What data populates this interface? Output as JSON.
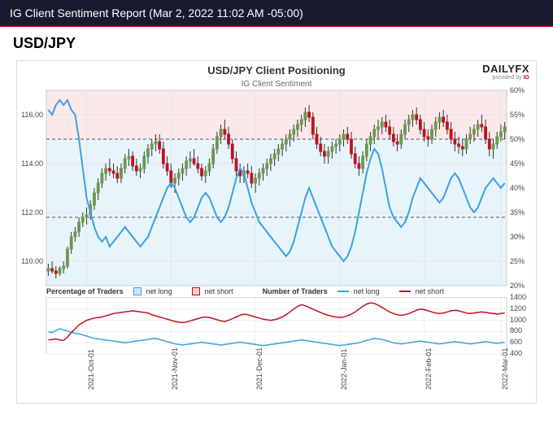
{
  "header": {
    "title": "IG Client Sentiment Report (Mar 2, 2022 11:02 AM -05:00)"
  },
  "pair": "USD/JPY",
  "logo": {
    "main": "DAILYFX",
    "sub_pre": "provided by ",
    "sub_ig": "IG"
  },
  "chart": {
    "title": "USD/JPY Client Positioning",
    "subtitle": "IG Client Sentiment",
    "background_long": "#e8f4fb",
    "background_short": "#fbe8e8",
    "border_color": "#cccccc",
    "left_axis": {
      "min": 109,
      "max": 117,
      "ticks": [
        110,
        112,
        114,
        116
      ],
      "label": "",
      "color": "#444",
      "fontsize": 9
    },
    "right_axis": {
      "min": 20,
      "max": 60,
      "ticks": [
        20,
        25,
        30,
        35,
        40,
        45,
        50,
        55,
        60
      ],
      "label": "",
      "color": "#444",
      "fontsize": 9
    },
    "hline_price": 115.0,
    "hline_sent": 50,
    "hline_sent_low": 34,
    "hline_color": "#555555",
    "hline_dash": "4 3",
    "x": {
      "n": 120,
      "ticks": [
        {
          "i": 10,
          "label": "2021-Oct-01"
        },
        {
          "i": 32,
          "label": "2021-Nov-01"
        },
        {
          "i": 54,
          "label": "2021-Dec-01"
        },
        {
          "i": 76,
          "label": "2022-Jan-01"
        },
        {
          "i": 98,
          "label": "2022-Feb-01"
        },
        {
          "i": 118,
          "label": "2022-Mar-01"
        }
      ]
    },
    "sentiment_line": {
      "color": "#3aa0e8",
      "width": 2,
      "y": [
        56,
        55,
        57,
        58,
        57,
        58,
        56,
        55,
        50,
        44,
        38,
        35,
        32,
        30,
        29,
        30,
        28,
        29,
        30,
        31,
        32,
        31,
        30,
        29,
        28,
        29,
        30,
        32,
        34,
        36,
        38,
        40,
        41,
        40,
        38,
        36,
        34,
        33,
        34,
        36,
        38,
        39,
        38,
        36,
        34,
        33,
        34,
        36,
        39,
        42,
        44,
        43,
        40,
        37,
        35,
        33,
        32,
        31,
        30,
        29,
        28,
        27,
        26,
        27,
        29,
        32,
        35,
        38,
        40,
        38,
        36,
        34,
        32,
        30,
        28,
        27,
        26,
        25,
        26,
        28,
        31,
        35,
        39,
        43,
        46,
        48,
        47,
        44,
        40,
        36,
        34,
        33,
        32,
        33,
        35,
        38,
        40,
        42,
        41,
        40,
        39,
        38,
        37,
        38,
        40,
        42,
        43,
        42,
        40,
        38,
        36,
        35,
        36,
        38,
        40,
        41,
        42,
        41,
        40,
        41
      ]
    },
    "candles": {
      "up_color": "#6a994e",
      "down_color": "#c1121f",
      "wick_color": "#333333",
      "width": 0.6,
      "data": [
        [
          109.6,
          109.9,
          109.4,
          109.7
        ],
        [
          109.7,
          110.0,
          109.5,
          109.6
        ],
        [
          109.6,
          109.8,
          109.3,
          109.5
        ],
        [
          109.5,
          109.8,
          109.4,
          109.7
        ],
        [
          109.7,
          110.0,
          109.5,
          109.8
        ],
        [
          109.8,
          110.6,
          109.7,
          110.5
        ],
        [
          110.5,
          111.2,
          110.3,
          111.0
        ],
        [
          111.0,
          111.4,
          110.8,
          111.2
        ],
        [
          111.2,
          111.8,
          111.0,
          111.6
        ],
        [
          111.6,
          112.0,
          111.4,
          111.8
        ],
        [
          111.8,
          112.2,
          111.5,
          111.9
        ],
        [
          111.9,
          112.5,
          111.7,
          112.3
        ],
        [
          112.3,
          113.0,
          112.1,
          112.8
        ],
        [
          112.8,
          113.4,
          112.5,
          113.2
        ],
        [
          113.2,
          113.8,
          113.0,
          113.6
        ],
        [
          113.6,
          114.0,
          113.3,
          113.8
        ],
        [
          113.8,
          114.2,
          113.5,
          113.7
        ],
        [
          113.7,
          114.0,
          113.4,
          113.6
        ],
        [
          113.6,
          113.9,
          113.2,
          113.4
        ],
        [
          113.4,
          114.0,
          113.2,
          113.8
        ],
        [
          113.8,
          114.4,
          113.6,
          114.2
        ],
        [
          114.2,
          114.6,
          113.9,
          114.3
        ],
        [
          114.3,
          114.5,
          113.7,
          113.9
        ],
        [
          113.9,
          114.2,
          113.5,
          113.7
        ],
        [
          113.7,
          114.0,
          113.4,
          113.8
        ],
        [
          113.8,
          114.5,
          113.6,
          114.3
        ],
        [
          114.3,
          114.8,
          114.0,
          114.6
        ],
        [
          114.6,
          115.0,
          114.3,
          114.8
        ],
        [
          114.8,
          115.2,
          114.5,
          114.9
        ],
        [
          114.9,
          115.2,
          114.4,
          114.6
        ],
        [
          114.6,
          114.9,
          113.8,
          114.0
        ],
        [
          114.0,
          114.3,
          113.5,
          113.7
        ],
        [
          113.7,
          114.0,
          113.0,
          113.2
        ],
        [
          113.2,
          113.6,
          112.8,
          113.4
        ],
        [
          113.4,
          113.8,
          113.1,
          113.6
        ],
        [
          113.6,
          114.0,
          113.3,
          113.8
        ],
        [
          113.8,
          114.3,
          113.5,
          114.1
        ],
        [
          114.1,
          114.5,
          113.8,
          114.2
        ],
        [
          114.2,
          114.6,
          113.9,
          114.0
        ],
        [
          114.0,
          114.3,
          113.6,
          113.8
        ],
        [
          113.8,
          114.0,
          113.3,
          113.5
        ],
        [
          113.5,
          113.9,
          113.2,
          113.7
        ],
        [
          113.7,
          114.2,
          113.5,
          114.0
        ],
        [
          114.0,
          114.8,
          113.8,
          114.6
        ],
        [
          114.6,
          115.3,
          114.4,
          115.1
        ],
        [
          115.1,
          115.6,
          114.8,
          115.4
        ],
        [
          115.4,
          115.8,
          115.0,
          115.2
        ],
        [
          115.2,
          115.5,
          114.6,
          114.8
        ],
        [
          114.8,
          115.0,
          114.0,
          114.2
        ],
        [
          114.2,
          114.5,
          113.5,
          113.7
        ],
        [
          113.7,
          114.0,
          113.2,
          113.5
        ],
        [
          113.5,
          113.9,
          113.2,
          113.7
        ],
        [
          113.7,
          114.0,
          113.4,
          113.6
        ],
        [
          113.6,
          113.9,
          113.0,
          113.2
        ],
        [
          113.2,
          113.6,
          112.8,
          113.4
        ],
        [
          113.4,
          113.8,
          113.1,
          113.6
        ],
        [
          113.6,
          114.0,
          113.3,
          113.8
        ],
        [
          113.8,
          114.2,
          113.5,
          114.0
        ],
        [
          114.0,
          114.4,
          113.7,
          114.2
        ],
        [
          114.2,
          114.6,
          113.9,
          114.4
        ],
        [
          114.4,
          114.8,
          114.1,
          114.6
        ],
        [
          114.6,
          115.0,
          114.3,
          114.8
        ],
        [
          114.8,
          115.2,
          114.5,
          115.0
        ],
        [
          115.0,
          115.4,
          114.7,
          115.2
        ],
        [
          115.2,
          115.6,
          114.9,
          115.4
        ],
        [
          115.4,
          115.8,
          115.1,
          115.6
        ],
        [
          115.6,
          116.0,
          115.3,
          115.8
        ],
        [
          115.8,
          116.3,
          115.5,
          116.1
        ],
        [
          116.1,
          116.4,
          115.7,
          115.9
        ],
        [
          115.9,
          116.1,
          115.0,
          115.2
        ],
        [
          115.2,
          115.5,
          114.6,
          114.8
        ],
        [
          114.8,
          115.1,
          114.3,
          114.5
        ],
        [
          114.5,
          114.8,
          114.0,
          114.3
        ],
        [
          114.3,
          114.7,
          114.0,
          114.5
        ],
        [
          114.5,
          114.9,
          114.2,
          114.7
        ],
        [
          114.7,
          115.0,
          114.4,
          114.8
        ],
        [
          114.8,
          115.2,
          114.5,
          115.0
        ],
        [
          115.0,
          115.4,
          114.7,
          115.2
        ],
        [
          115.2,
          115.5,
          114.8,
          115.0
        ],
        [
          115.0,
          115.3,
          114.2,
          114.4
        ],
        [
          114.4,
          114.7,
          113.8,
          114.0
        ],
        [
          114.0,
          114.3,
          113.5,
          113.8
        ],
        [
          113.8,
          114.5,
          113.6,
          114.3
        ],
        [
          114.3,
          115.0,
          114.1,
          114.8
        ],
        [
          114.8,
          115.3,
          114.5,
          115.1
        ],
        [
          115.1,
          115.6,
          114.8,
          115.4
        ],
        [
          115.4,
          115.8,
          115.0,
          115.5
        ],
        [
          115.5,
          115.9,
          115.2,
          115.7
        ],
        [
          115.7,
          116.0,
          115.3,
          115.5
        ],
        [
          115.5,
          115.8,
          115.0,
          115.2
        ],
        [
          115.2,
          115.5,
          114.7,
          114.9
        ],
        [
          114.9,
          115.2,
          114.5,
          114.8
        ],
        [
          114.8,
          115.4,
          114.6,
          115.2
        ],
        [
          115.2,
          115.8,
          115.0,
          115.6
        ],
        [
          115.6,
          116.0,
          115.3,
          115.8
        ],
        [
          115.8,
          116.2,
          115.5,
          116.0
        ],
        [
          116.0,
          116.3,
          115.6,
          115.8
        ],
        [
          115.8,
          116.0,
          115.2,
          115.4
        ],
        [
          115.4,
          115.7,
          114.9,
          115.1
        ],
        [
          115.1,
          115.4,
          114.7,
          115.0
        ],
        [
          115.0,
          115.6,
          114.8,
          115.4
        ],
        [
          115.4,
          115.9,
          115.1,
          115.7
        ],
        [
          115.7,
          116.1,
          115.4,
          115.9
        ],
        [
          115.9,
          116.2,
          115.5,
          115.7
        ],
        [
          115.7,
          116.0,
          115.2,
          115.4
        ],
        [
          115.4,
          115.7,
          114.8,
          115.0
        ],
        [
          115.0,
          115.3,
          114.5,
          114.8
        ],
        [
          114.8,
          115.1,
          114.4,
          114.7
        ],
        [
          114.7,
          115.0,
          114.3,
          114.6
        ],
        [
          114.6,
          115.2,
          114.4,
          115.0
        ],
        [
          115.0,
          115.5,
          114.8,
          115.2
        ],
        [
          115.2,
          115.6,
          114.9,
          115.4
        ],
        [
          115.4,
          115.8,
          115.1,
          115.6
        ],
        [
          115.6,
          116.0,
          115.3,
          115.5
        ],
        [
          115.5,
          115.8,
          114.8,
          115.0
        ],
        [
          115.0,
          115.3,
          114.3,
          114.6
        ],
        [
          114.6,
          115.0,
          114.2,
          114.8
        ],
        [
          114.8,
          115.3,
          114.6,
          115.1
        ],
        [
          115.1,
          115.6,
          114.9,
          115.3
        ],
        [
          115.3,
          115.7,
          115.0,
          115.5
        ]
      ]
    },
    "legend_upper": {
      "title": "Percentage of Traders",
      "items": [
        {
          "swatch": "#cde8f7",
          "border": "#3aa0e8",
          "label": "net long"
        },
        {
          "swatch": "#f7cdd0",
          "border": "#c1121f",
          "label": "net short"
        }
      ]
    }
  },
  "lower": {
    "title": "Number of Traders",
    "items": [
      {
        "color": "#3aa0e8",
        "label": "net long"
      },
      {
        "color": "#c1121f",
        "label": "net short"
      }
    ],
    "right_axis": {
      "min": 400,
      "max": 1400,
      "ticks": [
        400,
        600,
        800,
        1000,
        1200,
        1400
      ]
    },
    "long": {
      "color": "#3aa0e8",
      "width": 1.5,
      "y": [
        800,
        780,
        820,
        850,
        830,
        810,
        790,
        770,
        760,
        740,
        720,
        700,
        680,
        670,
        660,
        650,
        640,
        630,
        620,
        610,
        600,
        610,
        620,
        630,
        640,
        650,
        660,
        670,
        680,
        660,
        640,
        620,
        600,
        580,
        570,
        560,
        570,
        580,
        590,
        600,
        610,
        600,
        590,
        580,
        570,
        560,
        570,
        580,
        590,
        600,
        610,
        600,
        590,
        580,
        570,
        560,
        550,
        560,
        570,
        580,
        590,
        600,
        610,
        620,
        630,
        640,
        650,
        640,
        630,
        620,
        610,
        600,
        590,
        580,
        570,
        560,
        550,
        560,
        570,
        580,
        590,
        600,
        620,
        640,
        660,
        680,
        670,
        660,
        640,
        620,
        600,
        590,
        580,
        590,
        600,
        610,
        620,
        630,
        620,
        610,
        600,
        590,
        580,
        590,
        600,
        610,
        620,
        610,
        600,
        590,
        580,
        590,
        600,
        610,
        620,
        610,
        600,
        590,
        600,
        610
      ]
    },
    "short": {
      "color": "#c1121f",
      "width": 1.5,
      "y": [
        650,
        660,
        670,
        650,
        640,
        700,
        780,
        850,
        920,
        960,
        1000,
        1020,
        1040,
        1050,
        1060,
        1080,
        1100,
        1120,
        1130,
        1140,
        1150,
        1160,
        1170,
        1160,
        1150,
        1140,
        1130,
        1100,
        1080,
        1060,
        1040,
        1020,
        1000,
        980,
        970,
        960,
        970,
        990,
        1010,
        1030,
        1050,
        1060,
        1050,
        1030,
        1010,
        990,
        980,
        1000,
        1030,
        1060,
        1090,
        1110,
        1100,
        1080,
        1060,
        1040,
        1020,
        1010,
        1000,
        1010,
        1030,
        1060,
        1100,
        1150,
        1200,
        1250,
        1280,
        1260,
        1230,
        1200,
        1170,
        1140,
        1110,
        1090,
        1070,
        1060,
        1050,
        1060,
        1080,
        1110,
        1150,
        1200,
        1250,
        1290,
        1310,
        1300,
        1270,
        1230,
        1190,
        1150,
        1120,
        1100,
        1090,
        1100,
        1120,
        1150,
        1180,
        1200,
        1190,
        1170,
        1150,
        1130,
        1120,
        1130,
        1150,
        1170,
        1180,
        1170,
        1150,
        1130,
        1120,
        1130,
        1140,
        1150,
        1140,
        1130,
        1120,
        1110,
        1120,
        1130
      ]
    }
  }
}
